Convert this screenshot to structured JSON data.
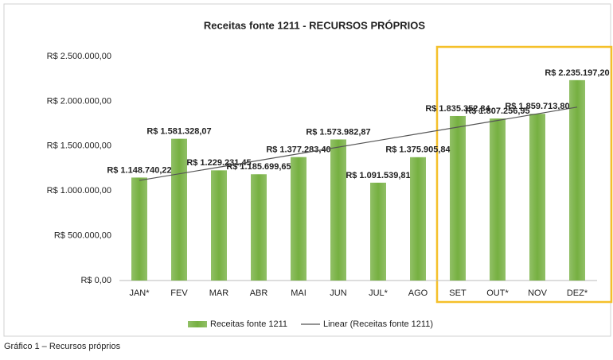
{
  "chart_data": {
    "type": "bar",
    "title": "Receitas fonte 1211 - RECURSOS PRÓPRIOS",
    "categories": [
      "JAN*",
      "FEV",
      "MAR",
      "ABR",
      "MAI",
      "JUN",
      "JUL*",
      "AGO",
      "SET",
      "OUT*",
      "NOV",
      "DEZ*"
    ],
    "series": [
      {
        "name": "Receitas fonte 1211",
        "color": "#76b041",
        "values": [
          1148740.22,
          1581328.07,
          1229231.45,
          1185699.65,
          1377283.4,
          1573982.87,
          1091539.81,
          1375905.84,
          1835352.84,
          1807256.95,
          1859713.8,
          2235197.2
        ],
        "value_labels": [
          "R$ 1.148.740,22",
          "R$ 1.581.328,07",
          "R$ 1.229.231,45",
          "R$ 1.185.699,65",
          "R$ 1.377.283,40",
          "R$ 1.573.982,87",
          "R$ 1.091.539,81",
          "R$ 1.375.905,84",
          "R$ 1.835.352,84",
          "R$ 1.807.256,95",
          "R$ 1.859.713,80",
          "R$ 2.235.197,20"
        ]
      }
    ],
    "trendline": {
      "type": "linear",
      "label": "Linear (Receitas fonte 1211)",
      "color": "#555555"
    },
    "ylim": [
      0,
      2500000
    ],
    "yticks": [
      {
        "value": 0,
        "label": "R$ 0,00"
      },
      {
        "value": 500000,
        "label": "R$ 500.000,00"
      },
      {
        "value": 1000000,
        "label": "R$ 1.000.000,00"
      },
      {
        "value": 1500000,
        "label": "R$ 1.500.000,00"
      },
      {
        "value": 2000000,
        "label": "R$ 2.000.000,00"
      },
      {
        "value": 2500000,
        "label": "R$ 2.500.000,00"
      }
    ],
    "grid": false
  },
  "caption": "Gráfico 1 – Recursos próprios"
}
